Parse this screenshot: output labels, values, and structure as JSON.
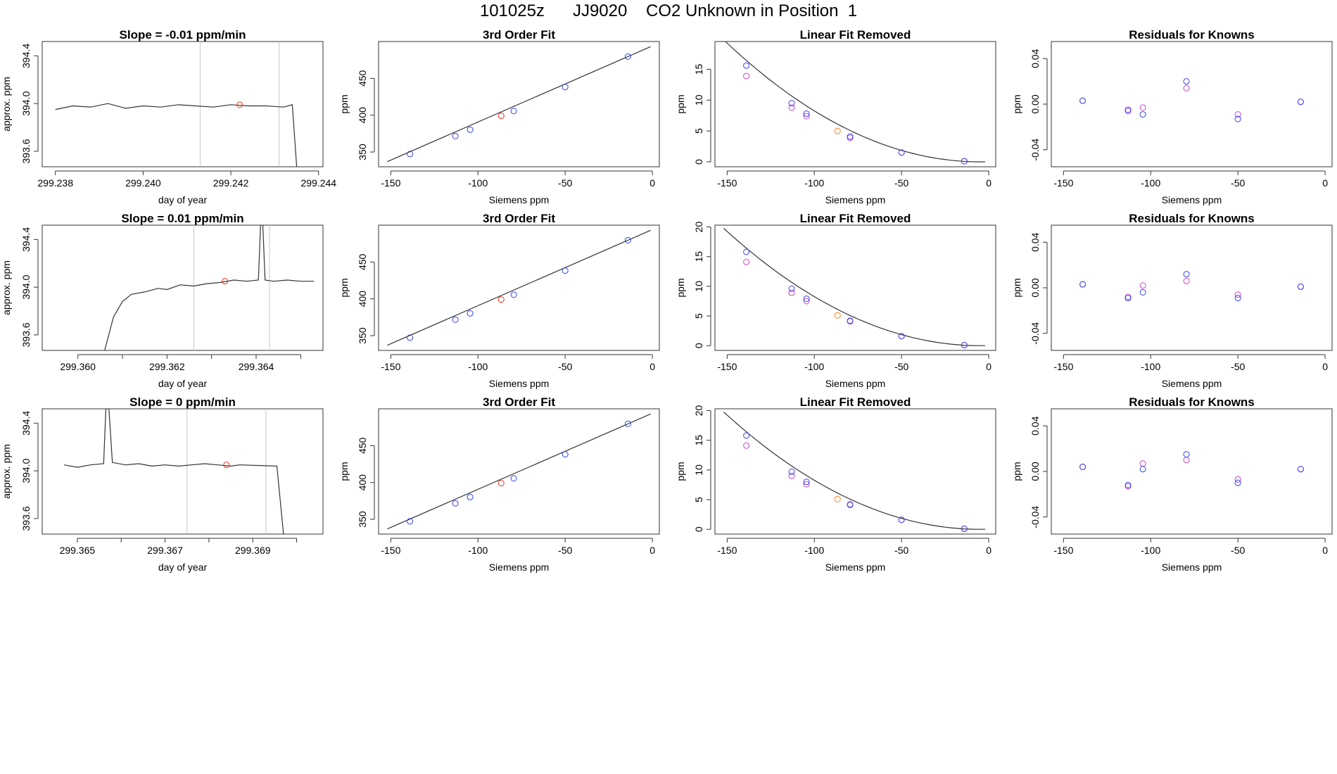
{
  "page_title": "101025z      JJ9020    CO2 Unknown in Position  1",
  "colors": {
    "line": "#333333",
    "vline": "#c8c8c8",
    "blue": "#3344ee",
    "magenta": "#cc44cc",
    "red": "#ee3322",
    "orange": "#ff7f1e"
  },
  "chart_data": [
    {
      "type": "line",
      "row": 1,
      "col": 1,
      "title": "Slope =  -0.01  ppm/min",
      "xlabel": "day of year",
      "ylabel": "approx. ppm",
      "xlim": [
        299.2377,
        299.2441
      ],
      "ylim": [
        393.47,
        394.52
      ],
      "xticks": [
        299.238,
        299.24,
        299.242,
        299.244
      ],
      "xtick_labels": [
        "299.238",
        "299.240",
        "299.242",
        "299.244"
      ],
      "yticks": [
        393.6,
        394.0,
        394.4
      ],
      "ytick_labels": [
        "393.6",
        "394.0",
        "394.4"
      ],
      "series": [
        {
          "x": [
            299.238,
            299.2384,
            299.2388,
            299.2392,
            299.2396,
            299.24,
            299.2404,
            299.2408,
            299.2412,
            299.2416,
            299.242,
            299.2424,
            299.2428,
            299.2432,
            299.2434,
            299.2435
          ],
          "y": [
            393.95,
            393.98,
            393.97,
            394.0,
            393.96,
            393.98,
            393.97,
            393.99,
            393.98,
            393.97,
            393.99,
            393.98,
            393.98,
            393.97,
            393.99,
            393.47
          ]
        }
      ],
      "vlines": [
        299.2413,
        299.2431
      ],
      "marker": {
        "x": 299.2422,
        "y": 393.99
      }
    },
    {
      "type": "scatter",
      "row": 1,
      "col": 2,
      "title": "3rd Order Fit",
      "xlabel": "Siemens ppm",
      "ylabel": "ppm",
      "xlim": [
        -157,
        4
      ],
      "ylim": [
        330,
        500
      ],
      "xticks": [
        -150,
        -100,
        -50,
        0
      ],
      "xtick_labels": [
        "-150",
        "-100",
        "-50",
        "0"
      ],
      "yticks": [
        350,
        400,
        450
      ],
      "ytick_labels": [
        "350",
        "400",
        "450"
      ],
      "fit_line": {
        "x": [
          -152,
          -1
        ],
        "y": [
          337,
          493
        ]
      },
      "knowns": {
        "x": [
          -139,
          -113,
          -104.5,
          -79.5,
          -50,
          -14
        ],
        "y": [
          347.3,
          371.7,
          380.3,
          405.6,
          438.2,
          479.6
        ]
      },
      "unknown": {
        "x": -86.7,
        "y": 399.1
      }
    },
    {
      "type": "scatter",
      "row": 1,
      "col": 3,
      "title": "Linear Fit Removed",
      "xlabel": "Siemens ppm",
      "ylabel": "ppm",
      "xlim": [
        -157,
        4
      ],
      "ylim": [
        -0.8,
        19.5
      ],
      "xticks": [
        -150,
        -100,
        -50,
        0
      ],
      "xtick_labels": [
        "-150",
        "-100",
        "-50",
        "0"
      ],
      "yticks": [
        0,
        5,
        10,
        15
      ],
      "ytick_labels": [
        "0",
        "5",
        "10",
        "15"
      ],
      "curve": {
        "x0": -152,
        "x1": -2,
        "vertex": -5,
        "a": 0.000915
      },
      "knowns": {
        "x": [
          -139,
          -113,
          -104.5,
          -79.5,
          -50,
          -14
        ],
        "y": [
          15.6,
          9.5,
          7.8,
          4.1,
          1.5,
          0.1
        ]
      },
      "knowns_alt": {
        "x": [
          -139,
          -113,
          -104.5,
          -79.5,
          -50,
          -14
        ],
        "y": [
          13.9,
          8.8,
          7.4,
          3.9,
          1.5,
          0.1
        ]
      },
      "unknown": {
        "x": -86.7,
        "y": 5.0
      }
    },
    {
      "type": "scatter",
      "row": 1,
      "col": 4,
      "title": "Residuals for Knowns",
      "xlabel": "Siemens ppm",
      "ylabel": "ppm",
      "xlim": [
        -157,
        4
      ],
      "ylim": [
        -0.055,
        0.055
      ],
      "xticks": [
        -150,
        -100,
        -50,
        0
      ],
      "xtick_labels": [
        "-150",
        "-100",
        "-50",
        "0"
      ],
      "yticks": [
        -0.04,
        0.0,
        0.04
      ],
      "ytick_labels": [
        "-0.04",
        "0.00",
        "0.04"
      ],
      "knowns": {
        "x": [
          -139,
          -113,
          -104.5,
          -79.5,
          -50,
          -14
        ],
        "y": [
          0.003,
          -0.005,
          -0.009,
          0.02,
          -0.013,
          0.002
        ]
      },
      "knowns_alt": {
        "x": [
          -139,
          -113,
          -104.5,
          -79.5,
          -50,
          -14
        ],
        "y": [
          0.003,
          -0.006,
          -0.003,
          0.014,
          -0.009,
          0.002
        ]
      }
    },
    {
      "type": "line",
      "row": 2,
      "col": 1,
      "title": "Slope =  0.01  ppm/min",
      "xlabel": "day of year",
      "ylabel": "approx. ppm",
      "xlim": [
        299.3592,
        299.3655
      ],
      "ylim": [
        393.47,
        394.52
      ],
      "xticks": [
        299.36,
        299.362,
        299.364
      ],
      "xtick_labels": [
        "299.360",
        "299.362",
        "299.364"
      ],
      "xticks_minor": [
        299.361,
        299.363,
        299.365
      ],
      "yticks": [
        393.6,
        394.0,
        394.4
      ],
      "ytick_labels": [
        "393.6",
        "394.0",
        "394.4"
      ],
      "series": [
        {
          "x": [
            299.3606,
            299.3608,
            299.361,
            299.3612,
            299.3615,
            299.3618,
            299.362,
            299.3623,
            299.3626,
            299.3629,
            299.3632,
            299.3635,
            299.3638,
            299.36405,
            299.3641,
            299.36415,
            299.3642,
            299.3644,
            299.3647,
            299.365,
            299.3653
          ],
          "y": [
            393.47,
            393.75,
            393.88,
            393.94,
            393.96,
            393.99,
            393.98,
            394.02,
            394.01,
            394.03,
            394.04,
            394.06,
            394.05,
            394.06,
            394.52,
            394.52,
            394.06,
            394.05,
            394.06,
            394.05,
            394.05
          ]
        }
      ],
      "vlines": [
        299.3626,
        299.3643
      ],
      "marker": {
        "x": 299.3633,
        "y": 394.05
      }
    },
    {
      "type": "scatter",
      "row": 2,
      "col": 2,
      "title": "3rd Order Fit",
      "xlabel": "Siemens ppm",
      "ylabel": "ppm",
      "xlim": [
        -157,
        4
      ],
      "ylim": [
        330,
        500
      ],
      "xticks": [
        -150,
        -100,
        -50,
        0
      ],
      "xtick_labels": [
        "-150",
        "-100",
        "-50",
        "0"
      ],
      "yticks": [
        350,
        400,
        450
      ],
      "ytick_labels": [
        "350",
        "400",
        "450"
      ],
      "fit_line": {
        "x": [
          -152,
          -1
        ],
        "y": [
          337,
          493
        ]
      },
      "knowns": {
        "x": [
          -139,
          -113,
          -104.5,
          -79.5,
          -50,
          -14
        ],
        "y": [
          347.3,
          371.7,
          380.3,
          405.6,
          438.2,
          479.6
        ]
      },
      "unknown": {
        "x": -86.7,
        "y": 399.1
      }
    },
    {
      "type": "scatter",
      "row": 2,
      "col": 3,
      "title": "Linear Fit Removed",
      "xlabel": "Siemens ppm",
      "ylabel": "ppm",
      "xlim": [
        -157,
        4
      ],
      "ylim": [
        -0.8,
        20.3
      ],
      "xticks": [
        -150,
        -100,
        -50,
        0
      ],
      "xtick_labels": [
        "-150",
        "-100",
        "-50",
        "0"
      ],
      "yticks": [
        0,
        5,
        10,
        15,
        20
      ],
      "ytick_labels": [
        "0",
        "5",
        "10",
        "15",
        "20"
      ],
      "curve": {
        "x0": -152,
        "x1": -2,
        "vertex": -5,
        "a": 0.000915
      },
      "knowns": {
        "x": [
          -139,
          -113,
          -104.5,
          -79.5,
          -50,
          -14
        ],
        "y": [
          15.8,
          9.6,
          7.9,
          4.2,
          1.6,
          0.1
        ]
      },
      "knowns_alt": {
        "x": [
          -139,
          -113,
          -104.5,
          -79.5,
          -50,
          -14
        ],
        "y": [
          14.1,
          8.9,
          7.5,
          4.1,
          1.6,
          0.1
        ]
      },
      "unknown": {
        "x": -86.7,
        "y": 5.1
      }
    },
    {
      "type": "scatter",
      "row": 2,
      "col": 4,
      "title": "Residuals for Knowns",
      "xlabel": "Siemens ppm",
      "ylabel": "ppm",
      "xlim": [
        -157,
        4
      ],
      "ylim": [
        -0.055,
        0.055
      ],
      "xticks": [
        -150,
        -100,
        -50,
        0
      ],
      "xtick_labels": [
        "-150",
        "-100",
        "-50",
        "0"
      ],
      "yticks": [
        -0.04,
        0.0,
        0.04
      ],
      "ytick_labels": [
        "-0.04",
        "0.00",
        "0.04"
      ],
      "knowns": {
        "x": [
          -139,
          -113,
          -104.5,
          -79.5,
          -50,
          -14
        ],
        "y": [
          0.003,
          -0.009,
          -0.004,
          0.012,
          -0.009,
          0.001
        ]
      },
      "knowns_alt": {
        "x": [
          -139,
          -113,
          -104.5,
          -79.5,
          -50,
          -14
        ],
        "y": [
          0.003,
          -0.008,
          0.002,
          0.006,
          -0.006,
          0.001
        ]
      }
    },
    {
      "type": "line",
      "row": 3,
      "col": 1,
      "title": "Slope =  0  ppm/min",
      "xlabel": "day of year",
      "ylabel": "approx. ppm",
      "xlim": [
        299.3642,
        299.3706
      ],
      "ylim": [
        393.47,
        394.52
      ],
      "xticks": [
        299.365,
        299.367,
        299.369
      ],
      "xtick_labels": [
        "299.365",
        "299.367",
        "299.369"
      ],
      "xticks_minor": [
        299.366,
        299.368,
        299.37
      ],
      "yticks": [
        393.6,
        394.0,
        394.4
      ],
      "ytick_labels": [
        "393.6",
        "394.0",
        "394.4"
      ],
      "series": [
        {
          "x": [
            299.3647,
            299.365,
            299.3653,
            299.3656,
            299.36565,
            299.36572,
            299.3658,
            299.3661,
            299.3664,
            299.3667,
            299.367,
            299.3673,
            299.3676,
            299.3679,
            299.3682,
            299.3685,
            299.3687,
            299.36955,
            299.3697
          ],
          "y": [
            394.05,
            394.03,
            394.05,
            394.06,
            394.52,
            394.52,
            394.07,
            394.05,
            394.06,
            394.04,
            394.05,
            394.04,
            394.05,
            394.06,
            394.05,
            394.04,
            394.05,
            394.04,
            393.47
          ]
        }
      ],
      "vlines": [
        299.3675,
        299.3693
      ],
      "marker": {
        "x": 299.3684,
        "y": 394.05
      }
    },
    {
      "type": "scatter",
      "row": 3,
      "col": 2,
      "title": "3rd Order Fit",
      "xlabel": "Siemens ppm",
      "ylabel": "ppm",
      "xlim": [
        -157,
        4
      ],
      "ylim": [
        330,
        500
      ],
      "xticks": [
        -150,
        -100,
        -50,
        0
      ],
      "xtick_labels": [
        "-150",
        "-100",
        "-50",
        "0"
      ],
      "yticks": [
        350,
        400,
        450
      ],
      "ytick_labels": [
        "350",
        "400",
        "450"
      ],
      "fit_line": {
        "x": [
          -152,
          -1
        ],
        "y": [
          337,
          493
        ]
      },
      "knowns": {
        "x": [
          -139,
          -113,
          -104.5,
          -79.5,
          -50,
          -14
        ],
        "y": [
          347.3,
          371.7,
          380.3,
          405.6,
          438.2,
          479.6
        ]
      },
      "unknown": {
        "x": -86.7,
        "y": 399.1
      }
    },
    {
      "type": "scatter",
      "row": 3,
      "col": 3,
      "title": "Linear Fit Removed",
      "xlabel": "Siemens ppm",
      "ylabel": "ppm",
      "xlim": [
        -157,
        4
      ],
      "ylim": [
        -0.8,
        20.3
      ],
      "xticks": [
        -150,
        -100,
        -50,
        0
      ],
      "xtick_labels": [
        "-150",
        "-100",
        "-50",
        "0"
      ],
      "yticks": [
        0,
        5,
        10,
        15,
        20
      ],
      "ytick_labels": [
        "0",
        "5",
        "10",
        "15",
        "20"
      ],
      "curve": {
        "x0": -152,
        "x1": -2,
        "vertex": -5,
        "a": 0.000915
      },
      "knowns": {
        "x": [
          -139,
          -113,
          -104.5,
          -79.5,
          -50,
          -14
        ],
        "y": [
          15.8,
          9.7,
          8.0,
          4.2,
          1.6,
          0.1
        ]
      },
      "knowns_alt": {
        "x": [
          -139,
          -113,
          -104.5,
          -79.5,
          -50,
          -14
        ],
        "y": [
          14.1,
          9.0,
          7.6,
          4.1,
          1.6,
          0.1
        ]
      },
      "unknown": {
        "x": -86.7,
        "y": 5.1
      }
    },
    {
      "type": "scatter",
      "row": 3,
      "col": 4,
      "title": "Residuals for Knowns",
      "xlabel": "Siemens ppm",
      "ylabel": "ppm",
      "xlim": [
        -157,
        4
      ],
      "ylim": [
        -0.055,
        0.055
      ],
      "xticks": [
        -150,
        -100,
        -50,
        0
      ],
      "xtick_labels": [
        "-150",
        "-100",
        "-50",
        "0"
      ],
      "yticks": [
        -0.04,
        0.0,
        0.04
      ],
      "ytick_labels": [
        "-0.04",
        "0.00",
        "0.04"
      ],
      "knowns": {
        "x": [
          -139,
          -113,
          -104.5,
          -79.5,
          -50,
          -14
        ],
        "y": [
          0.004,
          -0.012,
          0.002,
          0.015,
          -0.01,
          0.002
        ]
      },
      "knowns_alt": {
        "x": [
          -139,
          -113,
          -104.5,
          -79.5,
          -50,
          -14
        ],
        "y": [
          0.004,
          -0.013,
          0.007,
          0.01,
          -0.007,
          0.002
        ]
      }
    }
  ]
}
